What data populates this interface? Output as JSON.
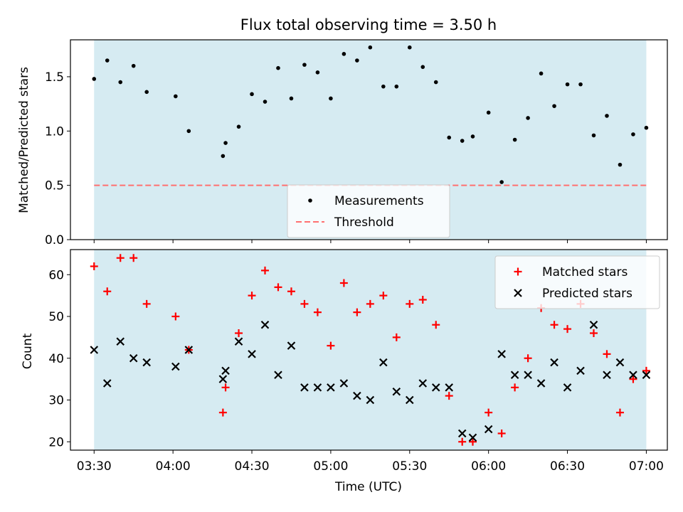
{
  "chart_data": [
    {
      "type": "scatter",
      "title": "Flux total observing time = 3.50 h",
      "xlabel": "",
      "ylabel": "Matched/Predicted stars",
      "xlim": [
        "03:21",
        "07:08"
      ],
      "ylim": [
        0,
        1.84
      ],
      "yticks": [
        "0.0",
        "0.5",
        "1.0",
        "1.5"
      ],
      "xticks": [
        "03:30",
        "04:00",
        "04:30",
        "05:00",
        "05:30",
        "06:00",
        "06:30",
        "07:00"
      ],
      "shaded_span": [
        "03:30",
        "07:00"
      ],
      "shade_color": "#add8e6",
      "legend_position": "lower center",
      "series": [
        {
          "name": "Measurements",
          "marker": "dot",
          "color": "#000000",
          "points": [
            [
              "03:30",
              1.48
            ],
            [
              "03:35",
              1.65
            ],
            [
              "03:40",
              1.45
            ],
            [
              "03:45",
              1.6
            ],
            [
              "03:50",
              1.36
            ],
            [
              "04:01",
              1.32
            ],
            [
              "04:06",
              1.0
            ],
            [
              "04:19",
              0.77
            ],
            [
              "04:20",
              0.89
            ],
            [
              "04:25",
              1.04
            ],
            [
              "04:30",
              1.34
            ],
            [
              "04:35",
              1.27
            ],
            [
              "04:40",
              1.58
            ],
            [
              "04:45",
              1.3
            ],
            [
              "04:50",
              1.61
            ],
            [
              "04:55",
              1.54
            ],
            [
              "05:00",
              1.3
            ],
            [
              "05:05",
              1.71
            ],
            [
              "05:10",
              1.65
            ],
            [
              "05:15",
              1.77
            ],
            [
              "05:20",
              1.41
            ],
            [
              "05:25",
              1.41
            ],
            [
              "05:30",
              1.77
            ],
            [
              "05:35",
              1.59
            ],
            [
              "05:40",
              1.45
            ],
            [
              "05:45",
              0.94
            ],
            [
              "05:50",
              0.91
            ],
            [
              "05:54",
              0.95
            ],
            [
              "06:00",
              1.17
            ],
            [
              "06:05",
              0.53
            ],
            [
              "06:10",
              0.92
            ],
            [
              "06:15",
              1.12
            ],
            [
              "06:20",
              1.53
            ],
            [
              "06:25",
              1.23
            ],
            [
              "06:30",
              1.43
            ],
            [
              "06:35",
              1.43
            ],
            [
              "06:40",
              0.96
            ],
            [
              "06:45",
              1.14
            ],
            [
              "06:50",
              0.69
            ],
            [
              "06:55",
              0.97
            ],
            [
              "07:00",
              1.03
            ]
          ]
        },
        {
          "name": "Threshold",
          "marker": "dashed-line",
          "color": "#ff7070",
          "points": [
            [
              "03:30",
              0.5
            ],
            [
              "07:00",
              0.5
            ]
          ]
        }
      ]
    },
    {
      "type": "scatter",
      "title": "",
      "xlabel": "Time (UTC)",
      "ylabel": "Count",
      "xlim": [
        "03:21",
        "07:08"
      ],
      "ylim": [
        18,
        66
      ],
      "yticks": [
        "20",
        "30",
        "40",
        "50",
        "60"
      ],
      "xticks": [
        "03:30",
        "04:00",
        "04:30",
        "05:00",
        "05:30",
        "06:00",
        "06:30",
        "07:00"
      ],
      "shaded_span": [
        "03:30",
        "07:00"
      ],
      "shade_color": "#add8e6",
      "legend_position": "upper right",
      "series": [
        {
          "name": "Matched stars",
          "marker": "plus",
          "color": "#ff0000",
          "points": [
            [
              "03:30",
              62
            ],
            [
              "03:35",
              56
            ],
            [
              "03:40",
              64
            ],
            [
              "03:45",
              64
            ],
            [
              "03:50",
              53
            ],
            [
              "04:01",
              50
            ],
            [
              "04:06",
              42
            ],
            [
              "04:19",
              27
            ],
            [
              "04:20",
              33
            ],
            [
              "04:25",
              46
            ],
            [
              "04:30",
              55
            ],
            [
              "04:35",
              61
            ],
            [
              "04:40",
              57
            ],
            [
              "04:45",
              56
            ],
            [
              "04:50",
              53
            ],
            [
              "04:55",
              51
            ],
            [
              "05:00",
              43
            ],
            [
              "05:05",
              58
            ],
            [
              "05:10",
              51
            ],
            [
              "05:15",
              53
            ],
            [
              "05:20",
              55
            ],
            [
              "05:25",
              45
            ],
            [
              "05:30",
              53
            ],
            [
              "05:35",
              54
            ],
            [
              "05:40",
              48
            ],
            [
              "05:45",
              31
            ],
            [
              "05:50",
              20
            ],
            [
              "05:54",
              20
            ],
            [
              "06:00",
              27
            ],
            [
              "06:05",
              22
            ],
            [
              "06:10",
              33
            ],
            [
              "06:15",
              40
            ],
            [
              "06:20",
              52
            ],
            [
              "06:25",
              48
            ],
            [
              "06:30",
              47
            ],
            [
              "06:35",
              53
            ],
            [
              "06:40",
              46
            ],
            [
              "06:45",
              41
            ],
            [
              "06:50",
              27
            ],
            [
              "06:55",
              35
            ],
            [
              "07:00",
              37
            ]
          ]
        },
        {
          "name": "Predicted stars",
          "marker": "x",
          "color": "#000000",
          "points": [
            [
              "03:30",
              42
            ],
            [
              "03:35",
              34
            ],
            [
              "03:40",
              44
            ],
            [
              "03:45",
              40
            ],
            [
              "03:50",
              39
            ],
            [
              "04:01",
              38
            ],
            [
              "04:06",
              42
            ],
            [
              "04:19",
              35
            ],
            [
              "04:20",
              37
            ],
            [
              "04:25",
              44
            ],
            [
              "04:30",
              41
            ],
            [
              "04:35",
              48
            ],
            [
              "04:40",
              36
            ],
            [
              "04:45",
              43
            ],
            [
              "04:50",
              33
            ],
            [
              "04:55",
              33
            ],
            [
              "05:00",
              33
            ],
            [
              "05:05",
              34
            ],
            [
              "05:10",
              31
            ],
            [
              "05:15",
              30
            ],
            [
              "05:20",
              39
            ],
            [
              "05:25",
              32
            ],
            [
              "05:30",
              30
            ],
            [
              "05:35",
              34
            ],
            [
              "05:40",
              33
            ],
            [
              "05:45",
              33
            ],
            [
              "05:50",
              22
            ],
            [
              "05:54",
              21
            ],
            [
              "06:00",
              23
            ],
            [
              "06:05",
              41
            ],
            [
              "06:10",
              36
            ],
            [
              "06:15",
              36
            ],
            [
              "06:20",
              34
            ],
            [
              "06:25",
              39
            ],
            [
              "06:30",
              33
            ],
            [
              "06:35",
              37
            ],
            [
              "06:40",
              48
            ],
            [
              "06:45",
              36
            ],
            [
              "06:50",
              39
            ],
            [
              "06:55",
              36
            ],
            [
              "07:00",
              36
            ]
          ]
        }
      ]
    }
  ]
}
